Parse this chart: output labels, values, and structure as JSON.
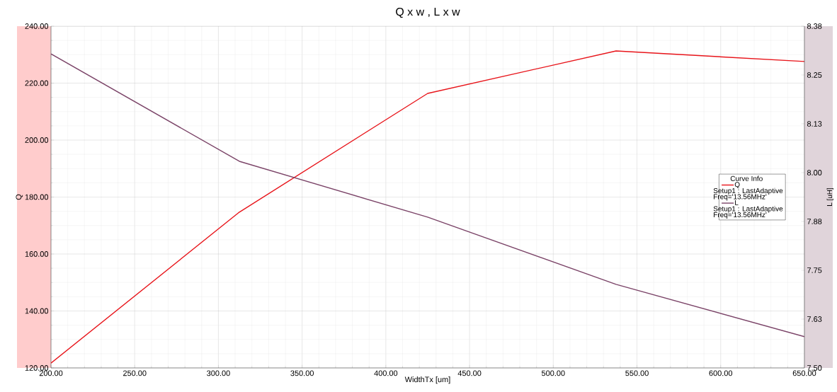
{
  "chart_data": {
    "type": "line",
    "title": "Q x w , L x w",
    "xlabel": "WidthTx [um]",
    "ylabel": "Q",
    "y2label": "L [uH]",
    "legend_title": "Curve Info",
    "x": [
      200,
      312.5,
      425,
      537.5,
      650
    ],
    "series": [
      {
        "name": "Q",
        "color": "#e8141a",
        "values": [
          121.7,
          174.7,
          216.4,
          231.3,
          227.6
        ]
      },
      {
        "name": "L",
        "color": "#7b4468",
        "axis": "y2",
        "values": [
          8.304,
          8.029,
          7.886,
          7.714,
          7.58
        ]
      }
    ],
    "annotations": [
      "Setup1 : LastAdaptive",
      "Freq='13.56MHz'",
      "Setup1 : LastAdaptive",
      "Freq='13.56MHz'"
    ],
    "xlim": [
      200,
      650
    ],
    "xticks": [
      {
        "value": 200,
        "label": "200.00"
      },
      {
        "value": 250,
        "label": "250.00"
      },
      {
        "value": 300,
        "label": "300.00"
      },
      {
        "value": 350,
        "label": "350.00"
      },
      {
        "value": 400,
        "label": "400.00"
      },
      {
        "value": 450,
        "label": "450.00"
      },
      {
        "value": 500,
        "label": "500.00"
      },
      {
        "value": 550,
        "label": "550.00"
      },
      {
        "value": 600,
        "label": "600.00"
      },
      {
        "value": 650,
        "label": "650.00"
      }
    ],
    "ylim": [
      120,
      240
    ],
    "yticks": [
      {
        "value": 120,
        "label": "120.00"
      },
      {
        "value": 140,
        "label": "140.00"
      },
      {
        "value": 160,
        "label": "160.00"
      },
      {
        "value": 180,
        "label": "180.00"
      },
      {
        "value": 200,
        "label": "200.00"
      },
      {
        "value": 220,
        "label": "220.00"
      },
      {
        "value": 240,
        "label": "240.00"
      }
    ],
    "y2lim": [
      7.5,
      8.375
    ],
    "y2ticks": [
      {
        "value": 7.5,
        "label": "7.50"
      },
      {
        "value": 7.625,
        "label": "7.63"
      },
      {
        "value": 7.75,
        "label": "7.75"
      },
      {
        "value": 7.875,
        "label": "7.88"
      },
      {
        "value": 8.0,
        "label": "8.00"
      },
      {
        "value": 8.125,
        "label": "8.13"
      },
      {
        "value": 8.25,
        "label": "8.25"
      },
      {
        "value": 8.375,
        "label": "8.38"
      }
    ],
    "grid": true,
    "legend": "right",
    "line_style": "solid",
    "marker": "none"
  }
}
